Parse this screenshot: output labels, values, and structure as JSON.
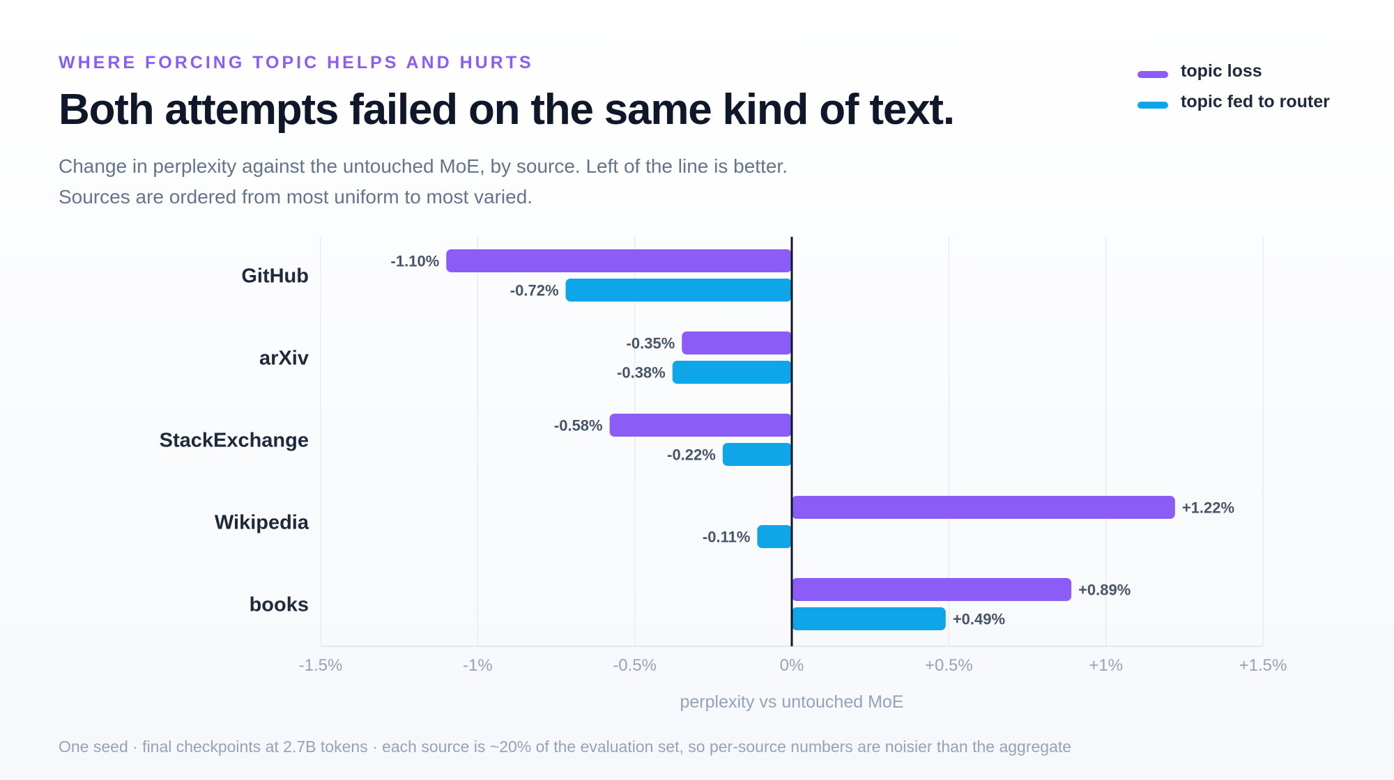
{
  "header": {
    "eyebrow": "WHERE FORCING TOPIC HELPS AND HURTS",
    "title": "Both attempts failed on the same kind of text.",
    "subtitle_lines": [
      "Change in perplexity against the untouched MoE, by source. Left of the line is better.",
      "Sources are ordered from most uniform to most varied."
    ]
  },
  "footnote": "One seed · final checkpoints at 2.7B tokens · each source is ~20% of the evaluation set, so per-source numbers are noisier than the aggregate",
  "colors": {
    "topic_loss": "#8b5cf6",
    "topic_fed_to_router": "#0ea5e9",
    "zero_line": "#0f172a",
    "grid": "#e8ecf1"
  },
  "chart_data": {
    "type": "bar",
    "orientation": "horizontal",
    "categories": [
      "GitHub",
      "arXiv",
      "StackExchange",
      "Wikipedia",
      "books"
    ],
    "series": [
      {
        "name": "topic loss",
        "color": "#8b5cf6",
        "values": [
          -1.1,
          -0.35,
          -0.58,
          1.22,
          0.89
        ],
        "labels": [
          "-1.10%",
          "-0.35%",
          "-0.58%",
          "+1.22%",
          "+0.89%"
        ]
      },
      {
        "name": "topic fed to router",
        "color": "#0ea5e9",
        "values": [
          -0.72,
          -0.38,
          -0.22,
          -0.11,
          0.49
        ],
        "labels": [
          "-0.72%",
          "-0.38%",
          "-0.22%",
          "-0.11%",
          "+0.49%"
        ]
      }
    ],
    "xlim": [
      -1.5,
      1.5
    ],
    "xticks": [
      -1.5,
      -1,
      -0.5,
      0,
      0.5,
      1,
      1.5
    ],
    "xtick_labels": [
      "-1.5%",
      "-1%",
      "-0.5%",
      "0%",
      "+0.5%",
      "+1%",
      "+1.5%"
    ],
    "xlabel": "perplexity vs untouched MoE",
    "ylabel": "",
    "grid": true,
    "legend_position": "top-right"
  }
}
